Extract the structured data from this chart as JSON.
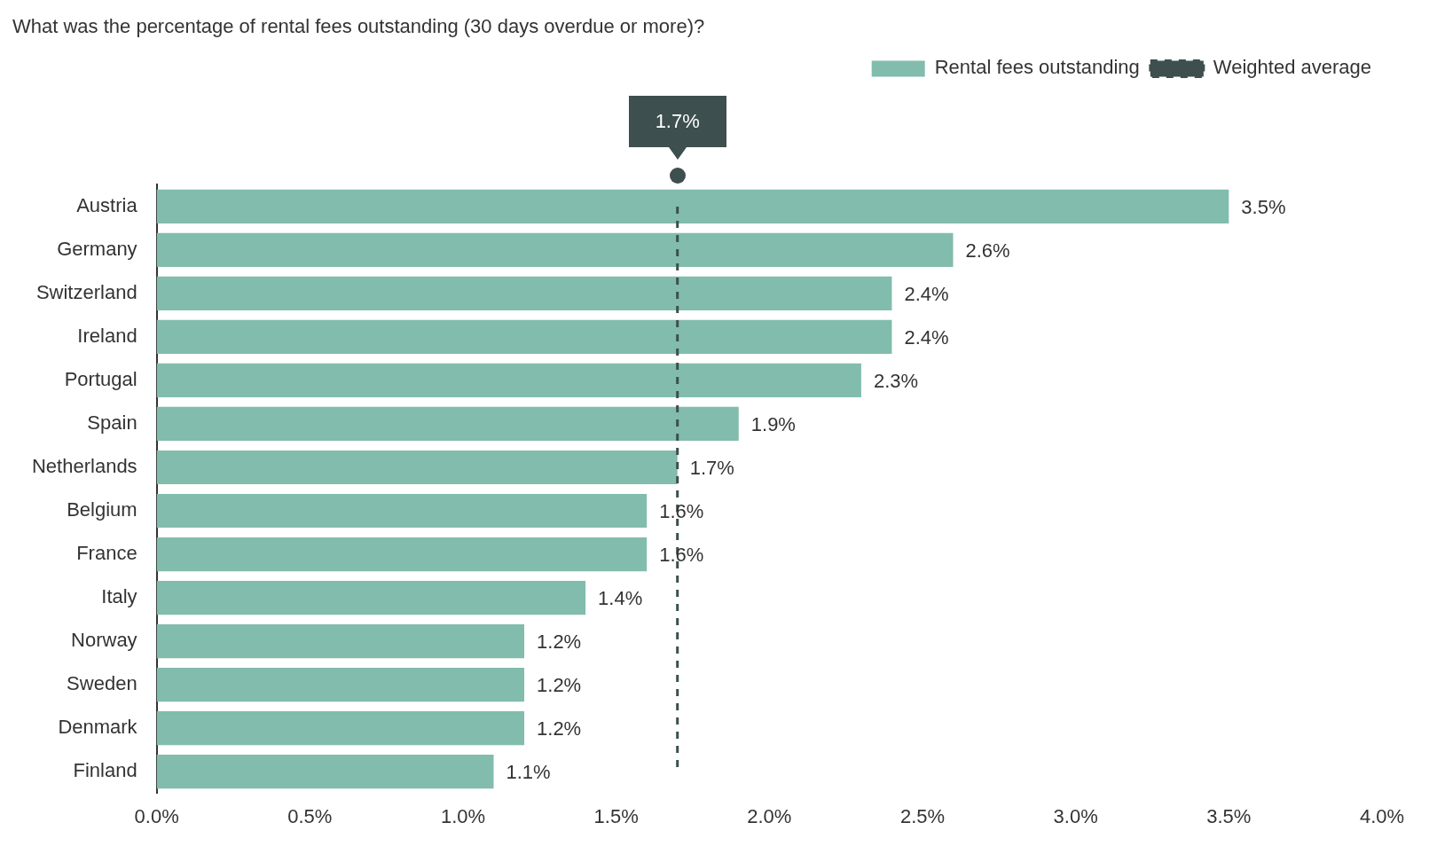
{
  "chart_data": {
    "type": "bar",
    "orientation": "horizontal",
    "title": "What was the percentage of rental fees outstanding (30 days overdue or more)?",
    "categories": [
      "Austria",
      "Germany",
      "Switzerland",
      "Ireland",
      "Portugal",
      "Spain",
      "Netherlands",
      "Belgium",
      "France",
      "Italy",
      "Norway",
      "Sweden",
      "Denmark",
      "Finland"
    ],
    "series": [
      {
        "name": "Rental fees outstanding",
        "color": "#82bcad",
        "values": [
          3.5,
          2.6,
          2.4,
          2.4,
          2.3,
          1.9,
          1.7,
          1.6,
          1.6,
          1.4,
          1.2,
          1.2,
          1.2,
          1.1
        ],
        "value_labels": [
          "3.5%",
          "2.6%",
          "2.4%",
          "2.4%",
          "2.3%",
          "1.9%",
          "1.7%",
          "1.6%",
          "1.6%",
          "1.4%",
          "1.2%",
          "1.2%",
          "1.2%",
          "1.1%"
        ]
      },
      {
        "name": "Weighted average",
        "type": "line",
        "color": "#3d4f4f",
        "line_style": "dashed",
        "marker": "none",
        "values": [
          1.7,
          1.7,
          1.7,
          1.7,
          1.7,
          1.7,
          1.7,
          1.7,
          1.7,
          1.7,
          1.7,
          1.7,
          1.7,
          1.7
        ]
      }
    ],
    "annotations": [
      "1.7%"
    ],
    "xlim": [
      0,
      4
    ],
    "xticks": [
      {
        "value": 0,
        "label": "0.0%"
      },
      {
        "value": 0.5,
        "label": "0.5%"
      },
      {
        "value": 1,
        "label": "1.0%"
      },
      {
        "value": 1.5,
        "label": "1.5%"
      },
      {
        "value": 2,
        "label": "2.0%"
      },
      {
        "value": 2.5,
        "label": "2.5%"
      },
      {
        "value": 3,
        "label": "3.0%"
      },
      {
        "value": 3.5,
        "label": "3.5%"
      },
      {
        "value": 4,
        "label": "4.0%"
      }
    ],
    "grid": false,
    "legend": "top right"
  }
}
